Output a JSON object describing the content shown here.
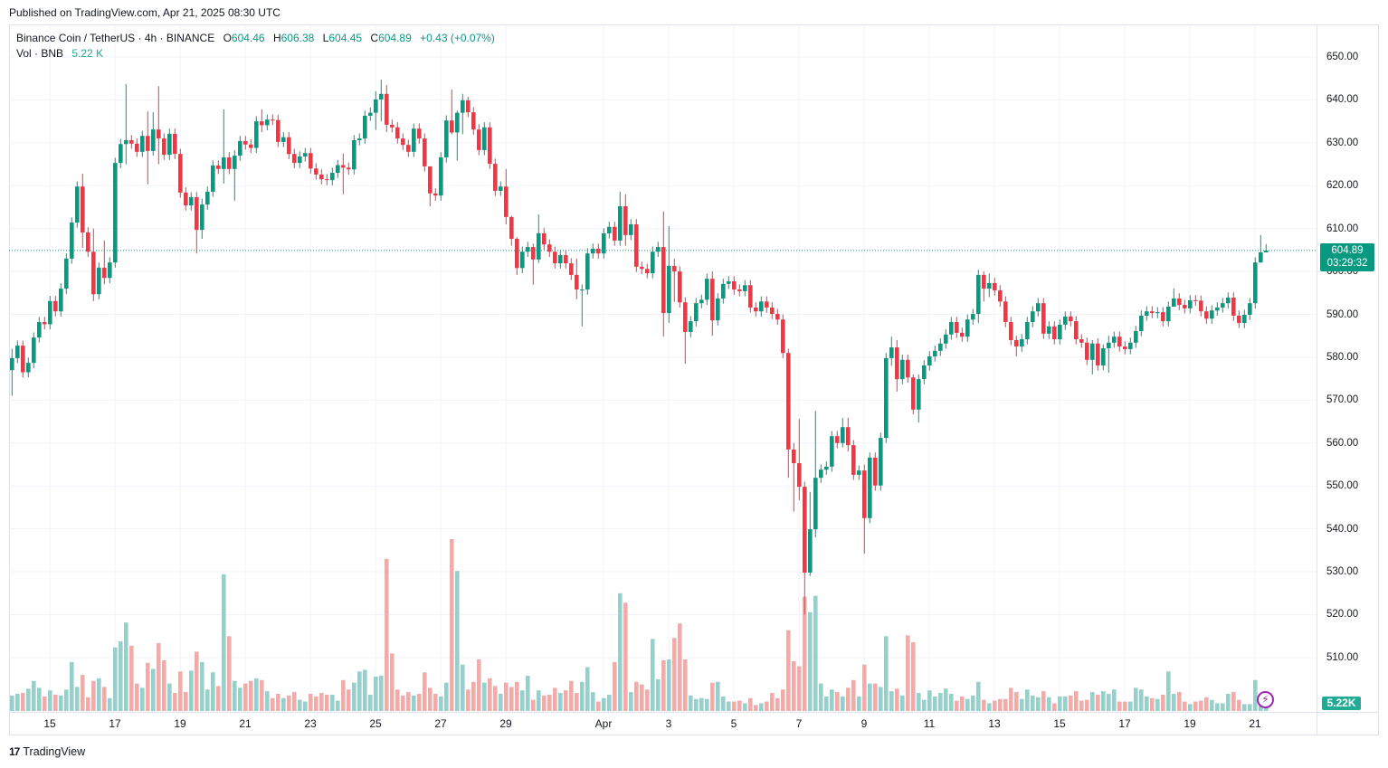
{
  "published": "Published on TradingView.com, Apr 21, 2025 08:30 UTC",
  "legend": {
    "symbol": "Binance Coin / TetherUS · 4h · BINANCE",
    "o_label": "O",
    "o": "604.46",
    "h_label": "H",
    "h": "606.38",
    "l_label": "L",
    "l": "604.45",
    "c_label": "C",
    "c": "604.89",
    "change": "+0.43 (+0.07%)",
    "vol_label": "Vol · BNB",
    "vol": "5.22 K"
  },
  "last_price": {
    "price": "604.89",
    "countdown": "03:29:32"
  },
  "last_volume": "5.22K",
  "footer": {
    "logo_text": "17",
    "brand": "TradingView"
  },
  "colors": {
    "up": "#089981",
    "down": "#f23645",
    "vol_up": "#92d2cc",
    "vol_down": "#f7a9a7",
    "grid": "#f0f3fa"
  },
  "chart_data": {
    "type": "candlestick",
    "title": "Binance Coin / TetherUS · 4h · BINANCE",
    "interval": "4h",
    "ylim": [
      510,
      650
    ],
    "price_ticks": [
      "650.00",
      "640.00",
      "630.00",
      "620.00",
      "610.00",
      "600.00",
      "590.00",
      "580.00",
      "570.00",
      "560.00",
      "550.00",
      "540.00",
      "530.00",
      "520.00",
      "510.00"
    ],
    "time_ticks": [
      {
        "label": "15",
        "candle": 7
      },
      {
        "label": "17",
        "candle": 19
      },
      {
        "label": "19",
        "candle": 31
      },
      {
        "label": "21",
        "candle": 43
      },
      {
        "label": "23",
        "candle": 55
      },
      {
        "label": "25",
        "candle": 67
      },
      {
        "label": "27",
        "candle": 79
      },
      {
        "label": "29",
        "candle": 91
      },
      {
        "label": "Apr",
        "candle": 109
      },
      {
        "label": "3",
        "candle": 121
      },
      {
        "label": "5",
        "candle": 133
      },
      {
        "label": "7",
        "candle": 145
      },
      {
        "label": "9",
        "candle": 157
      },
      {
        "label": "11",
        "candle": 169
      },
      {
        "label": "13",
        "candle": 181
      },
      {
        "label": "15",
        "candle": 193
      },
      {
        "label": "17",
        "candle": 205
      },
      {
        "label": "19",
        "candle": 217
      },
      {
        "label": "21",
        "candle": 229
      }
    ],
    "first_open": 577,
    "default_wick": 1.2,
    "close": [
      579.8,
      582.7,
      576.5,
      578.7,
      584.6,
      588.2,
      587.7,
      593.1,
      590.7,
      596,
      603,
      611.4,
      619.8,
      609.1,
      604.6,
      594.7,
      600.9,
      598.5,
      602.1,
      625.3,
      629.7,
      630.6,
      629.8,
      627.9,
      631.6,
      628.1,
      633.1,
      631,
      627.2,
      632.1,
      627.4,
      618.4,
      615.4,
      617.3,
      609.7,
      615.6,
      618.6,
      624.7,
      623.9,
      626.6,
      623.9,
      627,
      630.4,
      629.6,
      628.8,
      635,
      634.1,
      635.4,
      635.3,
      630.2,
      631.3,
      627.4,
      625.3,
      626.8,
      627.6,
      624,
      622.6,
      621.5,
      621.3,
      623,
      624.8,
      624.2,
      623.8,
      630.6,
      631,
      636.3,
      637,
      640.1,
      641.4,
      634.2,
      633.6,
      631,
      629.5,
      627.9,
      633.3,
      631,
      624.5,
      618.2,
      617.7,
      626.6,
      635.2,
      632.4,
      637,
      639.9,
      637.1,
      633.1,
      628.3,
      633.6,
      625.1,
      618.8,
      619.8,
      612.7,
      607.6,
      600.8,
      604.6,
      605.7,
      602.8,
      608.9,
      606.3,
      604.6,
      601.9,
      603.8,
      601.9,
      599.2,
      595.8,
      595.8,
      604.2,
      605.3,
      604.2,
      608.9,
      610.4,
      607.2,
      615.2,
      608.5,
      611,
      601.1,
      600.6,
      599.6,
      604.6,
      605.7,
      590.3,
      601.3,
      600,
      592.8,
      585.9,
      588.4,
      592.6,
      593.4,
      598.3,
      588.6,
      593.7,
      597.1,
      597.7,
      595.8,
      595.4,
      596.8,
      591.6,
      590.7,
      593,
      591.6,
      590.1,
      588.8,
      581,
      558.5,
      555.3,
      549.8,
      529.8,
      539.9,
      551.9,
      553.8,
      554.5,
      561.6,
      560,
      563.7,
      559.5,
      552.6,
      553.6,
      542.5,
      556.6,
      550.1,
      561.2,
      579.8,
      582.3,
      574.9,
      579.4,
      575.3,
      567.8,
      574.9,
      578.1,
      580.2,
      581.5,
      583.2,
      585.3,
      588.2,
      585.7,
      584.8,
      588.8,
      590.1,
      599.2,
      596,
      597.3,
      595.6,
      593,
      588.2,
      584,
      582.5,
      584.2,
      588.2,
      590.7,
      592.6,
      585.5,
      587.2,
      584.2,
      587.6,
      589.5,
      588.4,
      584.2,
      583.4,
      579.4,
      583.2,
      578.1,
      582.1,
      583.4,
      584.8,
      582.5,
      581.9,
      583.4,
      586.1,
      589.7,
      590.7,
      590.3,
      590.5,
      588.4,
      591.8,
      593.7,
      592.2,
      591.4,
      593.3,
      593.2,
      590.7,
      589,
      590.9,
      591.6,
      592.6,
      593.9,
      589.7,
      588,
      589.9,
      592.6,
      602.1,
      604.46,
      604.89
    ],
    "high_low_overrides": {
      "0": [
        582,
        571
      ],
      "13": [
        622.8,
        605.5
      ],
      "15": [
        610,
        593.1
      ],
      "17": [
        607.2,
        597
      ],
      "21": [
        643.7,
        625
      ],
      "25": [
        637.3,
        620.3
      ],
      "26": [
        637.1,
        627
      ],
      "27": [
        643.2,
        625
      ],
      "34": [
        618.5,
        604.2
      ],
      "35": [
        617,
        607.6
      ],
      "39": [
        637.8,
        620.5
      ],
      "41": [
        628.3,
        616.5
      ],
      "46": [
        637.8,
        632.5
      ],
      "61": [
        627.5,
        618
      ],
      "67": [
        642,
        633
      ],
      "68": [
        644.7,
        635
      ],
      "69": [
        643.5,
        632.5
      ],
      "77": [
        624.5,
        615.2
      ],
      "81": [
        642.4,
        632
      ],
      "82": [
        637.5,
        625.8
      ],
      "83": [
        641.4,
        632
      ],
      "84": [
        640.7,
        636
      ],
      "91": [
        623.9,
        611
      ],
      "92": [
        613,
        606
      ],
      "93": [
        608,
        599.2
      ],
      "96": [
        606.5,
        596.9
      ],
      "97": [
        613.3,
        602
      ],
      "104": [
        603,
        593.5
      ],
      "105": [
        597,
        587.2
      ],
      "112": [
        618.6,
        606
      ],
      "113": [
        618,
        606
      ],
      "120": [
        614,
        584.8
      ],
      "121": [
        610.6,
        588
      ],
      "122": [
        603,
        592.9
      ],
      "124": [
        594,
        578.5
      ],
      "129": [
        600,
        585
      ],
      "143": [
        582,
        551.9
      ],
      "144": [
        560,
        544
      ],
      "145": [
        565.6,
        546.7
      ],
      "146": [
        551,
        520
      ],
      "147": [
        548.6,
        529
      ],
      "148": [
        567.5,
        538
      ],
      "153": [
        565.9,
        559
      ],
      "154": [
        565.9,
        558
      ],
      "157": [
        555,
        534.2
      ],
      "162": [
        584.8,
        578
      ],
      "163": [
        584,
        572
      ],
      "166": [
        576,
        566.7
      ],
      "167": [
        576,
        564.8
      ],
      "178": [
        600.4,
        588
      ],
      "179": [
        600,
        593
      ],
      "180": [
        599.5,
        594
      ],
      "185": [
        585,
        580.2
      ],
      "199": [
        584,
        576
      ],
      "201": [
        583,
        577
      ],
      "202": [
        585,
        576.4
      ],
      "214": [
        596,
        592
      ],
      "230": [
        608.5,
        602
      ],
      "231": [
        606.38,
        604.45
      ]
    },
    "volume_k": [
      18,
      20,
      21,
      26,
      35,
      27,
      17,
      24,
      19,
      18,
      25,
      57,
      28,
      42,
      16,
      35,
      38,
      28,
      15,
      74,
      81,
      103,
      76,
      32,
      27,
      56,
      49,
      79,
      59,
      32,
      21,
      46,
      22,
      47,
      69,
      57,
      25,
      45,
      29,
      159,
      87,
      35,
      27,
      32,
      35,
      38,
      36,
      23,
      15,
      20,
      15,
      18,
      22,
      13,
      11,
      20,
      17,
      21,
      19,
      19,
      12,
      36,
      25,
      33,
      46,
      48,
      19,
      40,
      41,
      177,
      67,
      25,
      18,
      22,
      18,
      20,
      45,
      27,
      20,
      17,
      33,
      200,
      163,
      54,
      25,
      34,
      60,
      33,
      38,
      29,
      20,
      33,
      28,
      34,
      24,
      41,
      13,
      24,
      18,
      19,
      27,
      21,
      24,
      35,
      21,
      34,
      51,
      22,
      11,
      15,
      19,
      57,
      137,
      126,
      22,
      34,
      31,
      25,
      84,
      37,
      59,
      60,
      85,
      102,
      60,
      18,
      14,
      15,
      14,
      33,
      34,
      17,
      11,
      11,
      12,
      9,
      15,
      7,
      9,
      11,
      21,
      15,
      25,
      94,
      58,
      52,
      133,
      115,
      134,
      32,
      17,
      25,
      22,
      17,
      27,
      36,
      17,
      54,
      32,
      32,
      28,
      87,
      23,
      26,
      18,
      88,
      80,
      21,
      13,
      24,
      17,
      21,
      26,
      20,
      12,
      17,
      14,
      18,
      34,
      13,
      9,
      12,
      14,
      14,
      27,
      22,
      14,
      25,
      18,
      16,
      23,
      16,
      9,
      17,
      17,
      18,
      23,
      12,
      13,
      22,
      19,
      23,
      20,
      25,
      11,
      11,
      11,
      27,
      25,
      17,
      15,
      14,
      19,
      46,
      20,
      22,
      11,
      8,
      11,
      12,
      16,
      13,
      9,
      9,
      20,
      22,
      13,
      8,
      8,
      36,
      12,
      5.22
    ]
  }
}
